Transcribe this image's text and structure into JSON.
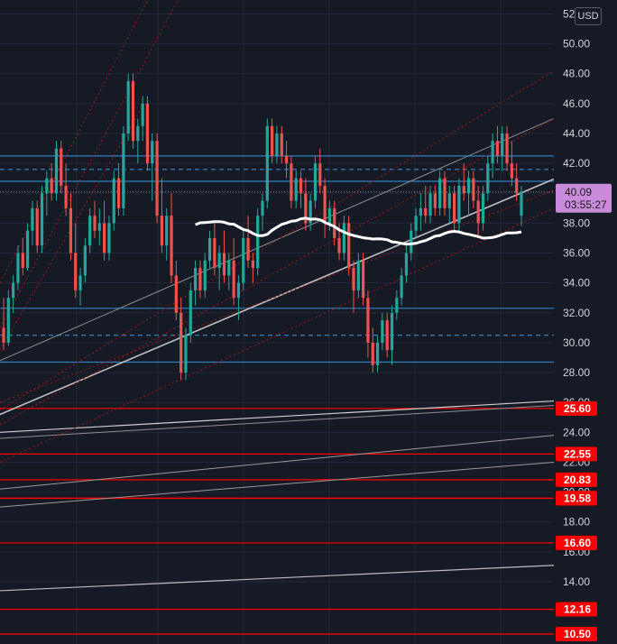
{
  "currency": "USD",
  "current_price": {
    "value": "40.09",
    "countdown": "03:55:27"
  },
  "colors": {
    "background": "#161a25",
    "bull": "#26a69a",
    "bear": "#ef5350",
    "support_red": "#ff0000",
    "blue_level": "#2f7fc1",
    "ma_line": "#ffffff",
    "current_tag": "#c98bdb"
  },
  "chart_data": {
    "type": "candlestick",
    "y_axis": {
      "range": [
        9.5,
        53
      ],
      "ticks": [
        "52.00",
        "50.00",
        "48.00",
        "46.00",
        "44.00",
        "42.00",
        "40.00",
        "38.00",
        "36.00",
        "34.00",
        "32.00",
        "30.00",
        "28.00",
        "26.00",
        "24.00",
        "22.00",
        "20.00",
        "18.00",
        "16.00",
        "14.00"
      ]
    },
    "red_levels": [
      "25.60",
      "22.55",
      "20.83",
      "19.60",
      "19.58",
      "16.60",
      "12.16",
      "10.50"
    ],
    "blue_levels_solid": [
      42.5,
      40.8,
      32.3,
      28.7
    ],
    "blue_levels_dashed": [
      41.6,
      30.5
    ],
    "candles": [
      [
        31,
        33,
        29.5,
        30
      ],
      [
        30,
        33.5,
        29.8,
        33
      ],
      [
        33,
        34.5,
        32,
        34
      ],
      [
        34,
        36.5,
        33.5,
        36
      ],
      [
        36,
        37,
        34.5,
        35
      ],
      [
        35,
        38,
        34.8,
        37.5
      ],
      [
        37.5,
        39.5,
        36.5,
        39
      ],
      [
        39,
        39.5,
        36,
        36.5
      ],
      [
        36.5,
        40.5,
        36,
        40
      ],
      [
        40,
        41.5,
        38.5,
        41
      ],
      [
        41,
        42,
        39.5,
        40
      ],
      [
        40,
        43.5,
        39.5,
        43
      ],
      [
        43,
        43.5,
        40,
        40.5
      ],
      [
        40.5,
        42,
        38.5,
        39
      ],
      [
        39,
        40,
        35.5,
        36
      ],
      [
        36,
        38,
        33,
        33.5
      ],
      [
        33.5,
        35,
        32.5,
        34.5
      ],
      [
        34.5,
        37,
        34,
        36.5
      ],
      [
        36.5,
        39,
        36,
        38.5
      ],
      [
        38.5,
        39.5,
        37,
        37.5
      ],
      [
        37.5,
        39,
        36.5,
        38
      ],
      [
        38,
        39.5,
        35.5,
        36
      ],
      [
        36,
        38.5,
        35.5,
        38
      ],
      [
        38,
        41.5,
        37.5,
        41
      ],
      [
        41,
        42,
        38.5,
        39
      ],
      [
        39,
        44.5,
        38.5,
        44
      ],
      [
        44,
        48,
        43.5,
        47.5
      ],
      [
        47.5,
        48,
        43,
        43.5
      ],
      [
        43.5,
        45,
        42,
        44.5
      ],
      [
        44.5,
        46.5,
        43.5,
        46
      ],
      [
        46,
        46.5,
        41.5,
        42
      ],
      [
        42,
        44,
        39.5,
        43.5
      ],
      [
        43.5,
        44,
        38,
        38.5
      ],
      [
        38.5,
        41,
        36,
        36.5
      ],
      [
        36.5,
        39,
        35.5,
        38.5
      ],
      [
        38.5,
        40,
        34,
        34.5
      ],
      [
        34.5,
        35.5,
        31.5,
        32
      ],
      [
        32,
        33,
        27.5,
        28
      ],
      [
        28,
        31,
        27.5,
        30.5
      ],
      [
        30.5,
        34,
        30,
        33.5
      ],
      [
        33.5,
        35.5,
        32.5,
        35
      ],
      [
        35,
        35.5,
        33,
        33.5
      ],
      [
        33.5,
        36,
        33,
        35.5
      ],
      [
        35.5,
        37.5,
        35,
        37
      ],
      [
        37,
        38,
        34.5,
        35
      ],
      [
        35,
        36.5,
        33.5,
        36
      ],
      [
        36,
        37.5,
        34,
        34.5
      ],
      [
        34.5,
        36,
        33.5,
        35.5
      ],
      [
        35.5,
        37,
        32.5,
        33
      ],
      [
        33,
        34.5,
        31.5,
        34
      ],
      [
        34,
        37.5,
        33.5,
        37
      ],
      [
        37,
        38.5,
        35,
        35.5
      ],
      [
        35.5,
        36,
        34,
        35
      ],
      [
        35,
        39,
        34.5,
        38.5
      ],
      [
        38.5,
        40,
        37.5,
        39.5
      ],
      [
        39.5,
        45,
        39,
        44.5
      ],
      [
        44.5,
        45,
        42,
        42.5
      ],
      [
        42.5,
        44.5,
        42,
        44
      ],
      [
        44,
        44.5,
        42,
        42.5
      ],
      [
        42.5,
        43.5,
        41,
        42
      ],
      [
        42,
        42.5,
        39,
        39.5
      ],
      [
        39.5,
        41.5,
        39,
        41
      ],
      [
        41,
        41.5,
        39,
        40
      ],
      [
        40,
        41,
        37.5,
        38
      ],
      [
        38,
        40,
        37.5,
        39.5
      ],
      [
        39.5,
        42.5,
        39,
        42
      ],
      [
        42,
        43,
        40,
        40.5
      ],
      [
        40.5,
        41,
        37,
        38
      ],
      [
        38,
        39.5,
        37.5,
        39
      ],
      [
        39,
        39.5,
        36.5,
        37
      ],
      [
        37,
        38,
        35.5,
        36
      ],
      [
        36,
        38.5,
        35.5,
        38
      ],
      [
        38,
        38.5,
        34.5,
        35
      ],
      [
        35,
        35.5,
        32,
        33.5
      ],
      [
        33.5,
        36,
        33,
        35.5
      ],
      [
        35.5,
        36,
        32.5,
        33
      ],
      [
        33,
        33.5,
        29,
        30
      ],
      [
        30,
        31,
        28,
        28.5
      ],
      [
        28.5,
        30.5,
        28,
        30
      ],
      [
        30,
        32,
        29.5,
        31.5
      ],
      [
        31.5,
        32,
        29,
        29.5
      ],
      [
        29.5,
        32.5,
        28.5,
        32
      ],
      [
        32,
        33.5,
        31.5,
        33
      ],
      [
        33,
        35,
        32.5,
        34.5
      ],
      [
        34.5,
        36.5,
        34,
        36
      ],
      [
        36,
        38,
        35.5,
        37.5
      ],
      [
        37.5,
        39,
        37,
        38.5
      ],
      [
        38.5,
        40,
        37.5,
        39
      ],
      [
        39,
        40.5,
        38,
        38.5
      ],
      [
        38.5,
        40.5,
        38,
        40
      ],
      [
        40,
        40.5,
        38.5,
        39
      ],
      [
        39,
        41.5,
        38.5,
        41
      ],
      [
        41,
        41.5,
        38.5,
        39
      ],
      [
        39,
        40.5,
        38,
        40
      ],
      [
        40,
        40.5,
        37.5,
        38
      ],
      [
        38,
        41,
        37.5,
        40.5
      ],
      [
        40.5,
        42,
        39.5,
        40
      ],
      [
        40,
        41.5,
        38.5,
        41
      ],
      [
        41,
        41.5,
        39,
        39.5
      ],
      [
        39.5,
        40.5,
        37,
        38
      ],
      [
        38,
        40.5,
        37.5,
        40
      ],
      [
        40,
        42.5,
        39.5,
        42
      ],
      [
        42,
        44,
        41,
        43.5
      ],
      [
        43.5,
        44.5,
        42,
        42.5
      ],
      [
        42.5,
        44.5,
        41.5,
        44
      ],
      [
        44,
        44.5,
        41.5,
        42
      ],
      [
        42,
        43.5,
        40.5,
        41
      ],
      [
        41,
        42,
        39.5,
        40
      ],
      [
        38.5,
        40.5,
        37.8,
        40.09
      ]
    ]
  }
}
